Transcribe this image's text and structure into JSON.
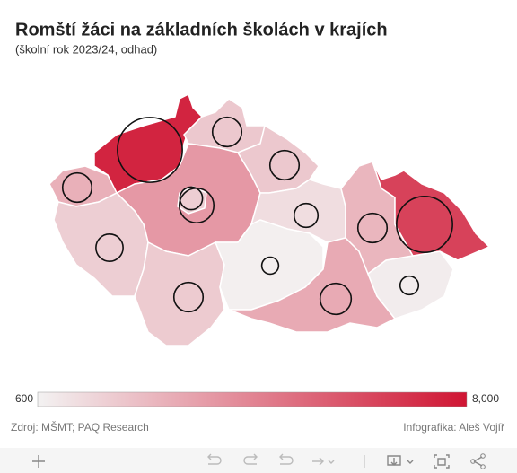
{
  "header": {
    "title": "Romští žáci na základních školách v krajích",
    "subtitle": "(školní rok 2023/24, odhad)"
  },
  "map": {
    "regions": [
      {
        "fill": 7500,
        "count": 7400
      },
      {
        "fill": 2800,
        "count": 1500
      },
      {
        "fill": 2000,
        "count": 1500
      },
      {
        "fill": 3600,
        "count": 2100
      },
      {
        "fill": 1800,
        "count": 900
      },
      {
        "fill": 2000,
        "count": 1500
      },
      {
        "fill": 1300,
        "count": 1000
      },
      {
        "fill": 1800,
        "count": 1300
      },
      {
        "fill": 1900,
        "count": 1500
      },
      {
        "fill": 700,
        "count": 500
      },
      {
        "fill": 3000,
        "count": 1700
      },
      {
        "fill": 800,
        "count": 600
      },
      {
        "fill": 2600,
        "count": 1500
      },
      {
        "fill": 6500,
        "count": 5500
      }
    ],
    "scale": {
      "min": 600,
      "max": {
        "value": 8000,
        "label": "8,000"
      }
    }
  },
  "footer": {
    "source": "Zdroj: MŠMT; PAQ Research",
    "credit": "Infografika: Aleš Vojíř"
  }
}
